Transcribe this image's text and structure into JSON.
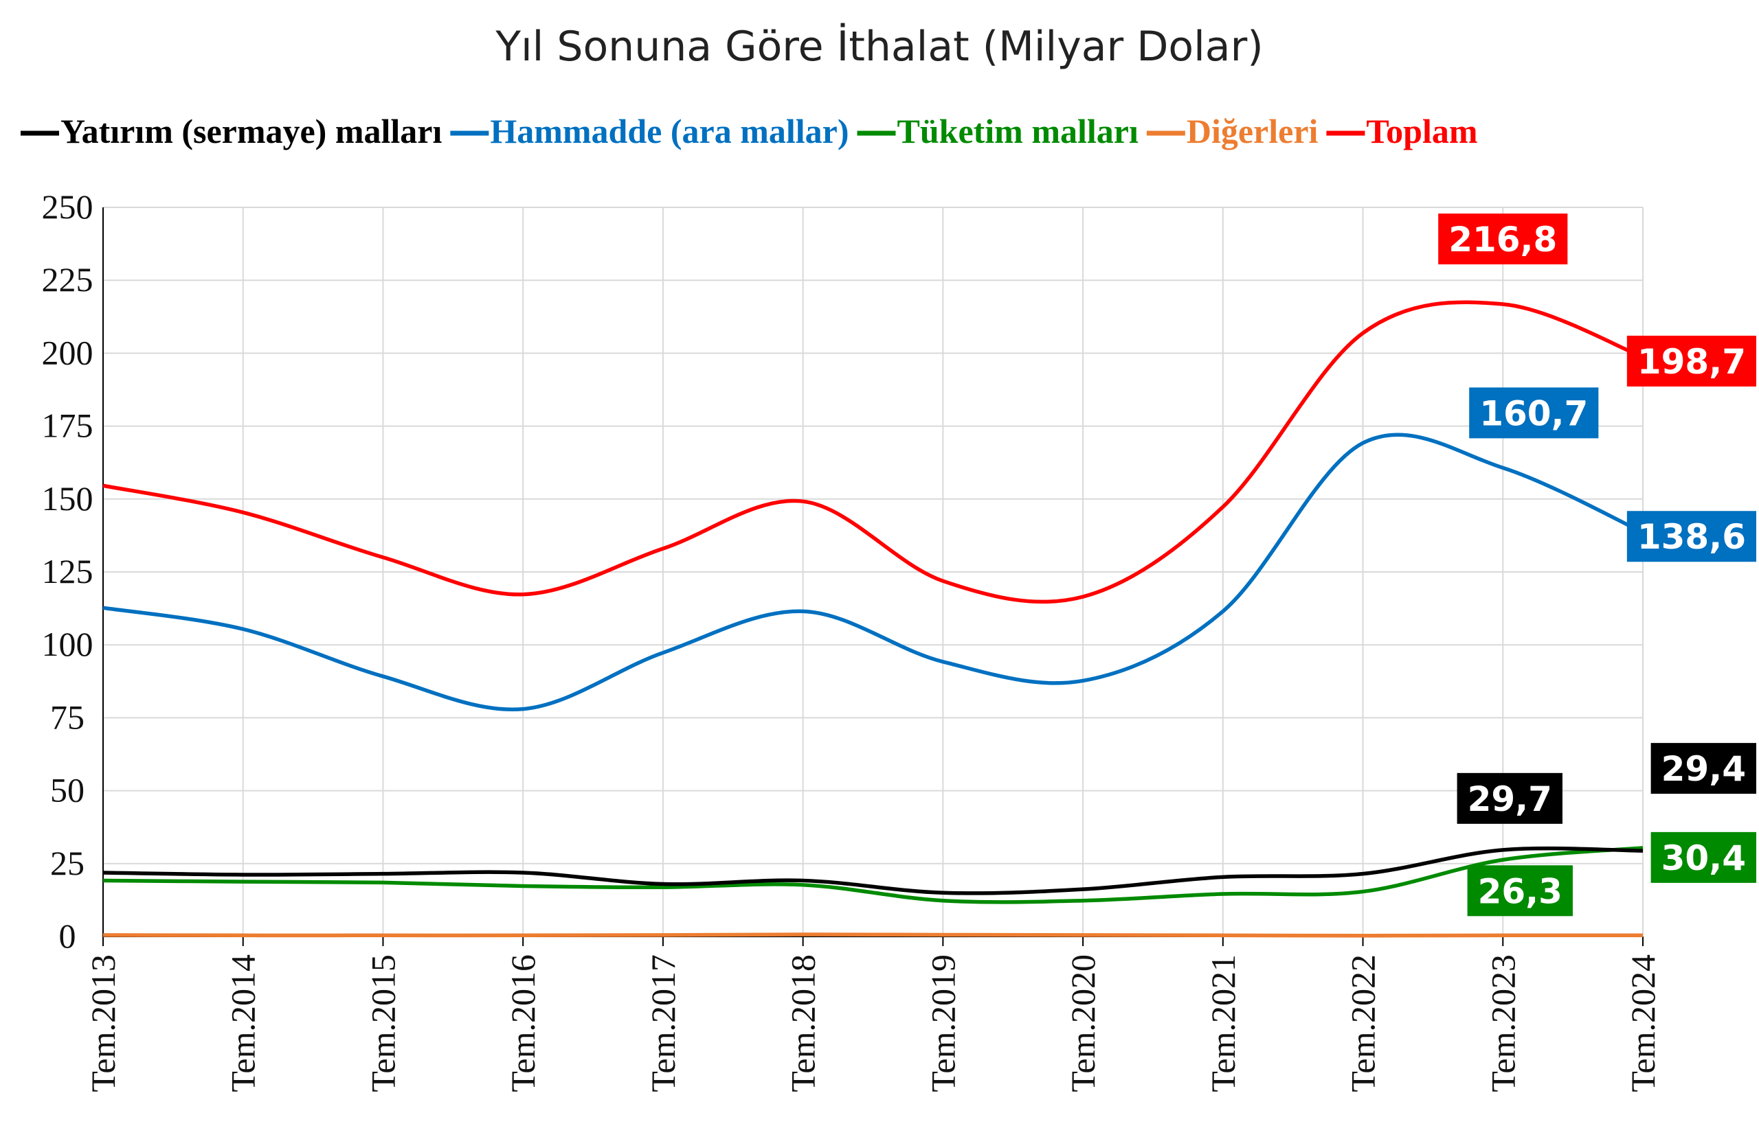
{
  "chart_data": {
    "type": "line",
    "title": "Yıl Sonuna Göre İthalat (Milyar Dolar)",
    "xlabel": "",
    "ylabel": "",
    "ylim": [
      0,
      250
    ],
    "yticks": [
      0,
      25,
      50,
      75,
      100,
      125,
      150,
      175,
      200,
      225,
      250
    ],
    "grid": true,
    "legend_position": "top",
    "categories": [
      "Tem.2013",
      "Tem.2014",
      "Tem.2015",
      "Tem.2016",
      "Tem.2017",
      "Tem.2018",
      "Tem.2019",
      "Tem.2020",
      "Tem.2021",
      "Tem.2022",
      "Tem.2023",
      "Tem.2024"
    ],
    "series": [
      {
        "name": "Yatırım (sermaye) malları",
        "color": "#000000",
        "values": [
          21.9,
          21.2,
          21.5,
          21.9,
          18.0,
          19.2,
          15.0,
          16.2,
          20.4,
          21.5,
          29.7,
          29.4
        ],
        "labels": [
          {
            "index": 10,
            "text": "29,7"
          },
          {
            "index": 11,
            "text": "29,4"
          }
        ]
      },
      {
        "name": "Hammadde (ara mallar)",
        "color": "#0070C0",
        "values": [
          112.7,
          105.4,
          89.2,
          78.0,
          97.3,
          111.5,
          94.2,
          87.7,
          111.5,
          169.2,
          160.7,
          138.6
        ],
        "labels": [
          {
            "index": 10,
            "text": "160,7"
          },
          {
            "index": 11,
            "text": "138,6"
          }
        ]
      },
      {
        "name": "Tüketim malları",
        "color": "#008A00",
        "values": [
          19.2,
          18.8,
          18.5,
          17.3,
          16.9,
          17.7,
          12.3,
          12.3,
          14.6,
          15.4,
          26.3,
          30.4
        ],
        "labels": [
          {
            "index": 10,
            "text": "26,3"
          },
          {
            "index": 11,
            "text": "30,4"
          }
        ]
      },
      {
        "name": "Diğerleri",
        "color": "#ED7D31",
        "values": [
          0.5,
          0.4,
          0.4,
          0.4,
          0.5,
          0.7,
          0.6,
          0.5,
          0.4,
          0.3,
          0.4,
          0.4
        ],
        "labels": []
      },
      {
        "name": "Toplam",
        "color": "#FF0000",
        "values": [
          154.6,
          145.4,
          130.0,
          117.3,
          133.0,
          149.2,
          121.9,
          116.5,
          147.3,
          206.9,
          216.8,
          198.7
        ],
        "labels": [
          {
            "index": 10,
            "text": "216,8"
          },
          {
            "index": 11,
            "text": "198,7"
          }
        ]
      }
    ]
  }
}
